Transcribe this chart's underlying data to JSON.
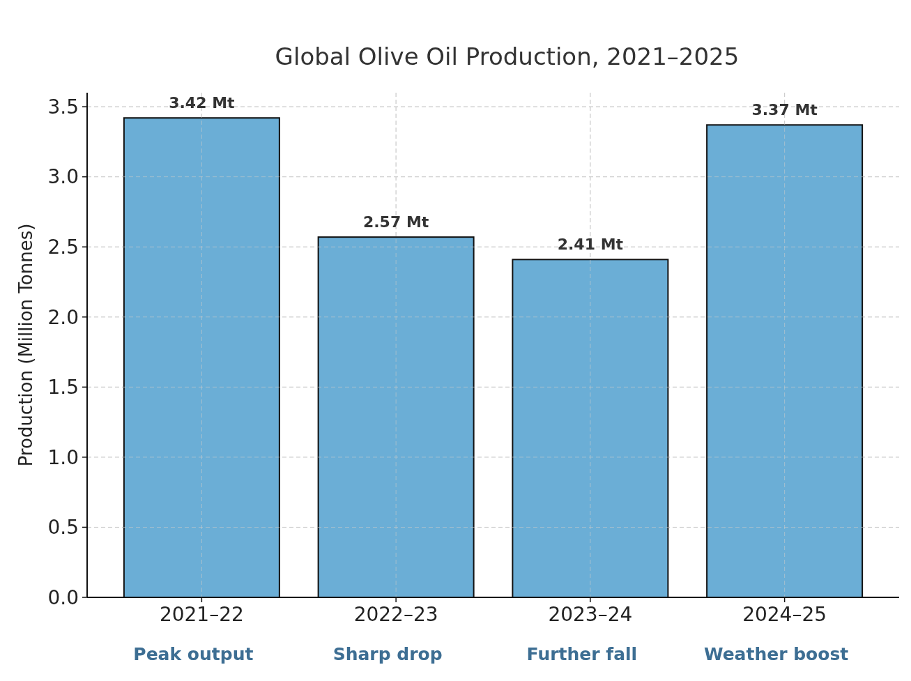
{
  "chart_data": {
    "type": "bar",
    "title": "Global Olive Oil Production, 2021–2025",
    "ylabel": "Production (Million Tonnes)",
    "categories": [
      "2021–22",
      "2022–23",
      "2023–24",
      "2024–25"
    ],
    "values": [
      3.42,
      2.57,
      2.41,
      3.37
    ],
    "color": "#6baed6",
    "value_labels": [
      "3.42 Mt",
      "2.57 Mt",
      "2.41 Mt",
      "3.37 Mt"
    ],
    "ylim": [
      0,
      3.6
    ],
    "yticks": [
      {
        "value": 0,
        "label": "0.0"
      },
      {
        "value": 0.5,
        "label": "0.5"
      },
      {
        "value": 1,
        "label": "1.0"
      },
      {
        "value": 1.5,
        "label": "1.5"
      },
      {
        "value": 2,
        "label": "2.0"
      },
      {
        "value": 2.5,
        "label": "2.5"
      },
      {
        "value": 3,
        "label": "3.0"
      },
      {
        "value": 3.5,
        "label": "3.5"
      }
    ],
    "grid": true,
    "annotations": [
      "Peak output",
      "Sharp drop",
      "Further fall",
      "Weather boost"
    ]
  }
}
